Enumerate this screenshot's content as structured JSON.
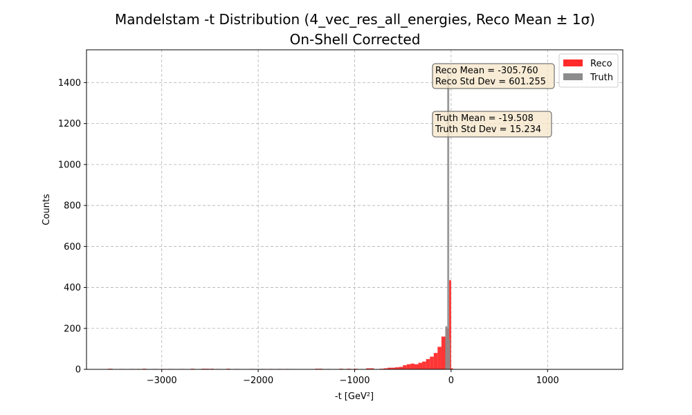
{
  "chart_data": {
    "type": "bar",
    "title": "Mandelstam -t Distribution (4_vec_res_all_energies, Reco Mean ± 1σ)",
    "subtitle": "On-Shell Corrected",
    "xlabel": "-t [GeV²]",
    "ylabel": "Counts",
    "xlim": [
      -3780,
      1780
    ],
    "ylim": [
      0,
      1560
    ],
    "xticks": [
      -3000,
      -2000,
      -1000,
      0,
      1000
    ],
    "xtick_labels": [
      "−3000",
      "−2000",
      "−1000",
      "0",
      "1000"
    ],
    "yticks": [
      0,
      200,
      400,
      600,
      800,
      1000,
      1200,
      1400
    ],
    "ytick_labels": [
      "0",
      "200",
      "400",
      "600",
      "800",
      "1000",
      "1200",
      "1400"
    ],
    "grid": true,
    "legend_position": "top-right",
    "series": [
      {
        "name": "Reco",
        "color": "#ff2a2a",
        "bins": [
          [
            -3560,
            -3510,
            3
          ],
          [
            -3440,
            -3400,
            2
          ],
          [
            -3330,
            -3290,
            2
          ],
          [
            -3260,
            -3220,
            2
          ],
          [
            -3200,
            -3160,
            3
          ],
          [
            -3090,
            -3050,
            2
          ],
          [
            -3010,
            -2970,
            2
          ],
          [
            -2930,
            -2890,
            2
          ],
          [
            -2810,
            -2770,
            2
          ],
          [
            -2700,
            -2660,
            3
          ],
          [
            -2590,
            -2550,
            3
          ],
          [
            -2550,
            -2510,
            3
          ],
          [
            -2500,
            -2460,
            3
          ],
          [
            -2440,
            -2400,
            2
          ],
          [
            -2330,
            -2290,
            3
          ],
          [
            -2240,
            -2200,
            2
          ],
          [
            -2090,
            -2050,
            2
          ],
          [
            -1970,
            -1930,
            2
          ],
          [
            -1890,
            -1850,
            2
          ],
          [
            -1800,
            -1760,
            2
          ],
          [
            -1720,
            -1680,
            2
          ],
          [
            -1410,
            -1370,
            3
          ],
          [
            -1370,
            -1330,
            3
          ],
          [
            -1290,
            -1250,
            2
          ],
          [
            -1160,
            -1120,
            3
          ],
          [
            -1080,
            -1040,
            3
          ],
          [
            -1010,
            -970,
            3
          ],
          [
            -880,
            -840,
            5
          ],
          [
            -840,
            -800,
            5
          ],
          [
            -740,
            -700,
            3
          ],
          [
            -700,
            -660,
            5
          ],
          [
            -660,
            -620,
            8
          ],
          [
            -620,
            -580,
            8
          ],
          [
            -580,
            -540,
            10
          ],
          [
            -540,
            -500,
            12
          ],
          [
            -500,
            -460,
            20
          ],
          [
            -460,
            -420,
            25
          ],
          [
            -420,
            -380,
            28
          ],
          [
            -380,
            -340,
            25
          ],
          [
            -340,
            -300,
            32
          ],
          [
            -300,
            -260,
            38
          ],
          [
            -260,
            -220,
            50
          ],
          [
            -220,
            -180,
            62
          ],
          [
            -180,
            -140,
            80
          ],
          [
            -140,
            -100,
            110
          ],
          [
            -100,
            -60,
            160
          ],
          [
            -60,
            -40,
            200
          ],
          [
            -40,
            -20,
            200
          ],
          [
            -20,
            0,
            435
          ],
          [
            0,
            20,
            5
          ]
        ]
      },
      {
        "name": "Truth",
        "color": "#8c8c8c",
        "bins": [
          [
            -60,
            -40,
            210
          ],
          [
            -40,
            -30,
            1475
          ],
          [
            -30,
            -20,
            1430
          ],
          [
            -20,
            -10,
            145
          ]
        ]
      }
    ],
    "annotations": {
      "reco_mean": "Reco Mean = -305.760",
      "reco_std": "Reco Std Dev = 601.255",
      "truth_mean": "Truth Mean = -19.508",
      "truth_std": "Truth Std Dev = 15.234"
    }
  }
}
